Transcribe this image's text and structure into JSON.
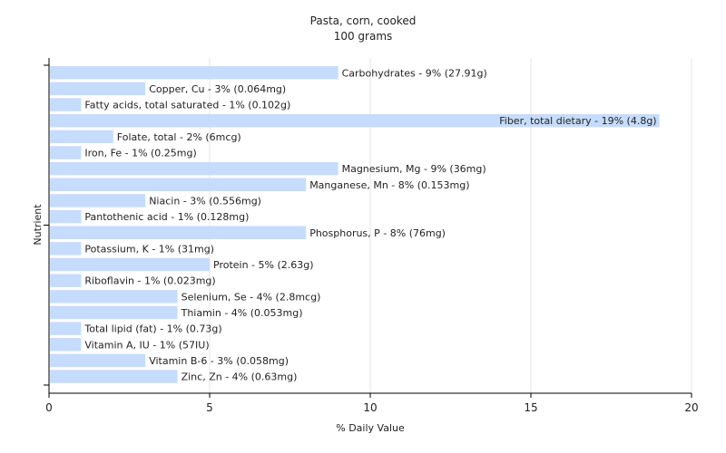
{
  "chart_data": {
    "type": "bar",
    "orientation": "horizontal",
    "title": "Pasta, corn, cooked",
    "subtitle": "100 grams",
    "xlabel": "% Daily Value",
    "ylabel": "Nutrient",
    "xlim": [
      0,
      20
    ],
    "xticks": [
      "0",
      "5",
      "10",
      "15",
      "20"
    ],
    "grid": "vertical",
    "bar_color": "#c6dcfc",
    "categories": [
      "Carbohydrates",
      "Copper, Cu",
      "Fatty acids, total saturated",
      "Fiber, total dietary",
      "Folate, total",
      "Iron, Fe",
      "Magnesium, Mg",
      "Manganese, Mn",
      "Niacin",
      "Pantothenic acid",
      "Phosphorus, P",
      "Potassium, K",
      "Protein",
      "Riboflavin",
      "Selenium, Se",
      "Thiamin",
      "Total lipid (fat)",
      "Vitamin A, IU",
      "Vitamin B-6",
      "Zinc, Zn"
    ],
    "values": [
      9,
      3,
      1,
      19,
      2,
      1,
      9,
      8,
      3,
      1,
      8,
      1,
      5,
      1,
      4,
      4,
      1,
      1,
      3,
      4
    ],
    "labels": [
      "Carbohydrates - 9% (27.91g)",
      "Copper, Cu - 3% (0.064mg)",
      "Fatty acids, total saturated - 1% (0.102g)",
      "Fiber, total dietary - 19% (4.8g)",
      "Folate, total - 2% (6mcg)",
      "Iron, Fe - 1% (0.25mg)",
      "Magnesium, Mg - 9% (36mg)",
      "Manganese, Mn - 8% (0.153mg)",
      "Niacin - 3% (0.556mg)",
      "Pantothenic acid - 1% (0.128mg)",
      "Phosphorus, P - 8% (76mg)",
      "Potassium, K - 1% (31mg)",
      "Protein - 5% (2.63g)",
      "Riboflavin - 1% (0.023mg)",
      "Selenium, Se - 4% (2.8mcg)",
      "Thiamin - 4% (0.053mg)",
      "Total lipid (fat) - 1% (0.73g)",
      "Vitamin A, IU - 1% (57IU)",
      "Vitamin B-6 - 3% (0.058mg)",
      "Zinc, Zn - 4% (0.63mg)"
    ]
  }
}
